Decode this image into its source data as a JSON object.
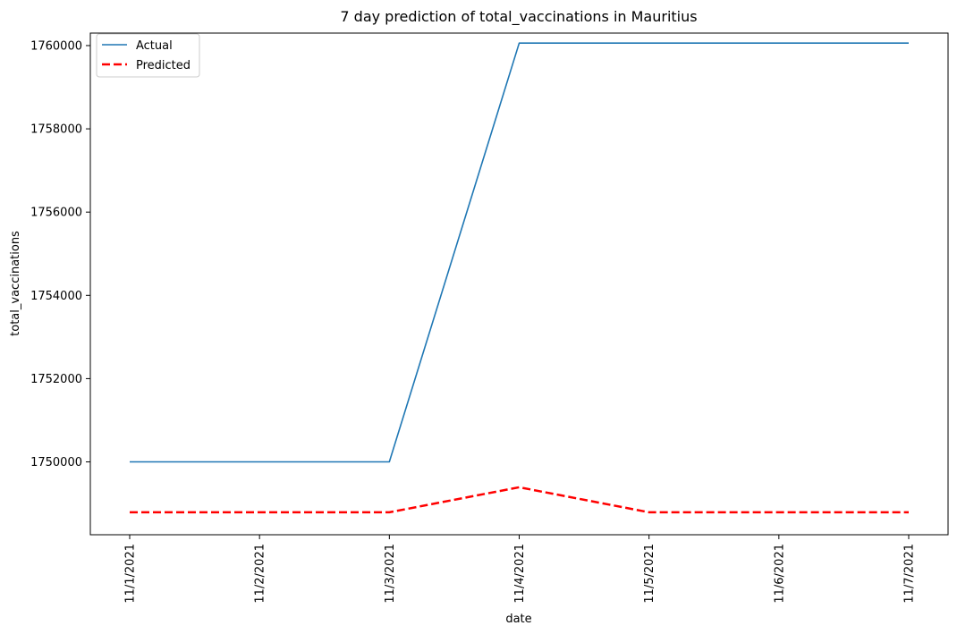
{
  "chart_data": {
    "type": "line",
    "title": "7 day prediction of total_vaccinations in Mauritius",
    "xlabel": "date",
    "ylabel": "total_vaccinations",
    "categories": [
      "11/1/2021",
      "11/2/2021",
      "11/3/2021",
      "11/4/2021",
      "11/5/2021",
      "11/6/2021",
      "11/7/2021"
    ],
    "y_ticks": [
      1750000,
      1752000,
      1754000,
      1756000,
      1758000,
      1760000
    ],
    "ylim": [
      1748250,
      1760300
    ],
    "grid": false,
    "legend_position": "top-left",
    "series": [
      {
        "name": "Actual",
        "color": "#1f77b4",
        "style": "solid",
        "values": [
          1750000,
          1750000,
          1750000,
          1760060,
          1760060,
          1760060,
          1760060
        ]
      },
      {
        "name": "Predicted",
        "color": "#ff0000",
        "style": "dashed",
        "values": [
          1748790,
          1748790,
          1748790,
          1749390,
          1748790,
          1748790,
          1748790
        ]
      }
    ]
  }
}
